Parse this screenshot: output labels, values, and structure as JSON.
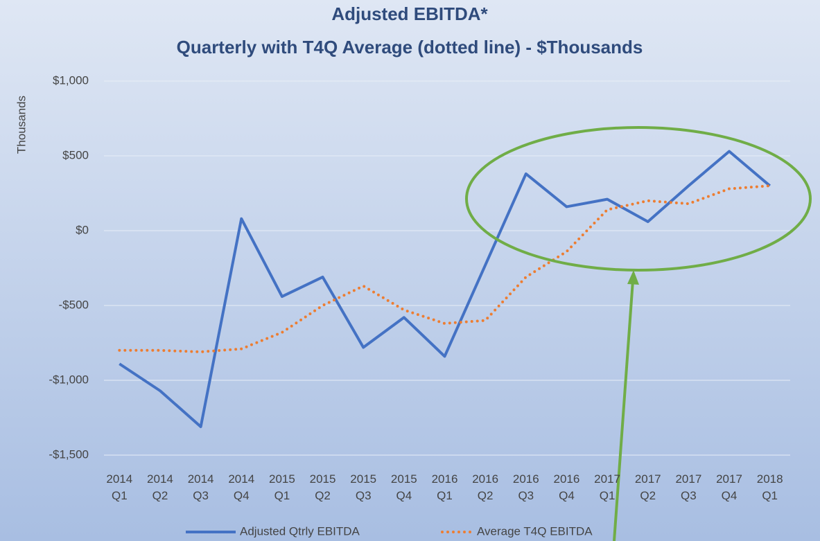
{
  "chart_data": {
    "type": "line",
    "title": "Adjusted EBITDA*",
    "subtitle": "Quarterly with T4Q Average (dotted line) - $Thousands",
    "y_label": "Thousands",
    "categories": [
      "2014 Q1",
      "2014 Q2",
      "2014 Q3",
      "2014 Q4",
      "2015 Q1",
      "2015 Q2",
      "2015 Q3",
      "2015 Q4",
      "2016 Q1",
      "2016 Q2",
      "2016 Q3",
      "2016 Q4",
      "2017 Q1",
      "2017 Q2",
      "2017 Q3",
      "2017 Q4",
      "2018 Q1"
    ],
    "series": [
      {
        "name": "Adjusted Qtrly EBITDA",
        "color": "#4472c4",
        "style": "solid",
        "values": [
          -890,
          -1070,
          -1310,
          80,
          -440,
          -310,
          -780,
          -580,
          -840,
          -230,
          380,
          160,
          210,
          60,
          300,
          530,
          300
        ]
      },
      {
        "name": "Average T4Q EBITDA",
        "color": "#ed7d31",
        "style": "dotted",
        "values": [
          -800,
          -800,
          -810,
          -790,
          -680,
          -500,
          -370,
          -530,
          -620,
          -600,
          -310,
          -140,
          140,
          200,
          180,
          280,
          300
        ]
      }
    ],
    "ylim": [
      -1500,
      1000
    ],
    "yticks": [
      {
        "value": -1500,
        "label": "-$1,500"
      },
      {
        "value": -1000,
        "label": "-$1,000"
      },
      {
        "value": -500,
        "label": "-$500"
      },
      {
        "value": 0,
        "label": "$0"
      },
      {
        "value": 500,
        "label": "$500"
      },
      {
        "value": 1000,
        "label": "$1,000"
      }
    ],
    "grid": true,
    "legend": "bottom"
  }
}
